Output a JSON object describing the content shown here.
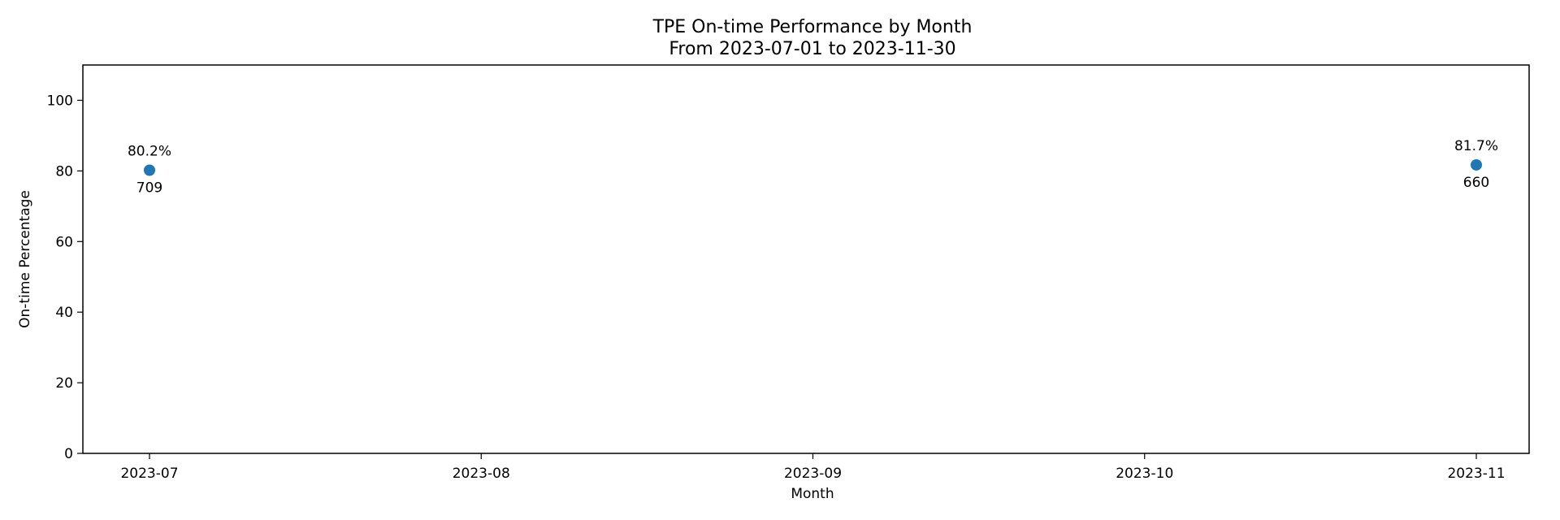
{
  "chart_data": {
    "type": "scatter",
    "title": "TPE On-time Performance by Month",
    "subtitle": "From 2023-07-01 to 2023-11-30",
    "xlabel": "Month",
    "ylabel": "On-time Percentage",
    "x_categories": [
      "2023-07",
      "2023-08",
      "2023-09",
      "2023-10",
      "2023-11"
    ],
    "ylim": [
      0,
      110
    ],
    "y_ticks": [
      0,
      20,
      40,
      60,
      80,
      100
    ],
    "grid": false,
    "legend": "none",
    "series": [
      {
        "color": "#1f77b4",
        "points": [
          {
            "x": "2023-07",
            "y": 80.2,
            "label_above": "80.2%",
            "label_below": "709"
          },
          {
            "x": "2023-11",
            "y": 81.7,
            "label_above": "81.7%",
            "label_below": "660"
          }
        ]
      }
    ]
  }
}
